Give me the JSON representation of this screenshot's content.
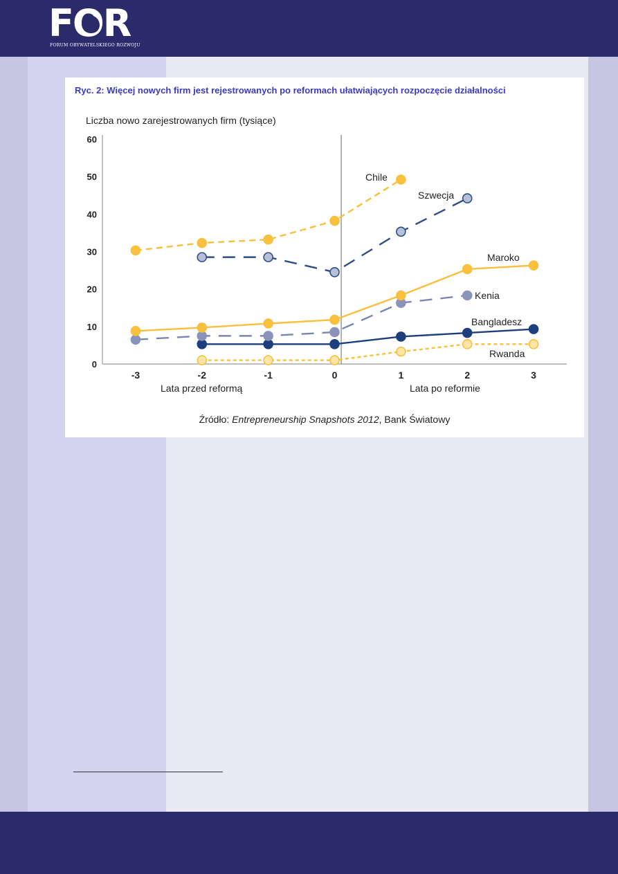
{
  "logo": {
    "text": "FOR",
    "subtitle": "FORUM OBYWATELSKIEGO ROZWOJU"
  },
  "figure": {
    "title": "Ryc. 2: Więcej nowych firm jest rejestrowanych po reformach ułatwiających rozpoczęcie działalności",
    "source_prefix": "Źródło: ",
    "source_title": "Entrepreneurship Snapshots 2012",
    "source_suffix": ", Bank Światowy"
  },
  "chart_data": {
    "type": "line",
    "title": "Ryc. 2: Więcej nowych firm jest rejestrowanych po reformach ułatwiających rozpoczęcie działalności",
    "ylabel": "Liczba nowo zarejestrowanych firm (tysiące)",
    "xlabel_left": "Lata przed reformą",
    "xlabel_right": "Lata po reformie",
    "x_ticks": [
      -3,
      -2,
      -1,
      0,
      1,
      2,
      3
    ],
    "x_tick_labels": [
      "-3",
      "-2",
      "-1",
      "0",
      "1",
      "2",
      "3"
    ],
    "y_ticks": [
      0,
      10,
      20,
      30,
      40,
      50,
      60
    ],
    "y_tick_labels": [
      "0",
      "10",
      "20",
      "30",
      "40",
      "50",
      "60"
    ],
    "ylim": [
      0,
      60
    ],
    "xlim": [
      -3.5,
      3.5
    ],
    "reform_line_x": 0.1,
    "series": [
      {
        "name": "Chile",
        "x": [
          -3,
          -2,
          -1,
          0,
          1
        ],
        "values": [
          30.3,
          32.3,
          33.2,
          38.2,
          49.2
        ],
        "color": "#f8c03d",
        "dash": "medium",
        "marker": "#f8c03d",
        "marker_stroke": "#f8c03d"
      },
      {
        "name": "Szwecja",
        "x": [
          -2,
          -1,
          0,
          1,
          2
        ],
        "values": [
          28.5,
          28.5,
          24.5,
          35.3,
          44.2
        ],
        "color": "#2e4d86",
        "dash": "long",
        "marker": "#b7c0d8",
        "marker_stroke": "#2e4d86"
      },
      {
        "name": "Maroko",
        "x": [
          -3,
          -2,
          -1,
          0,
          1,
          2,
          3
        ],
        "values": [
          8.8,
          9.7,
          10.8,
          11.8,
          18.3,
          25.3,
          26.3
        ],
        "color": "#f8c03d",
        "dash": "solid",
        "marker": "#f8c03d",
        "marker_stroke": "#f8c03d"
      },
      {
        "name": "Kenia",
        "x": [
          -3,
          -2,
          -1,
          0,
          1,
          2
        ],
        "values": [
          6.5,
          7.5,
          7.5,
          8.5,
          16.3,
          18.3
        ],
        "color": "#7b86b0",
        "dash": "long",
        "marker": "#8a94bb",
        "marker_stroke": "#8a94bb"
      },
      {
        "name": "Bangladesz",
        "x": [
          -2,
          -1,
          0,
          1,
          2,
          3
        ],
        "values": [
          5.3,
          5.3,
          5.3,
          7.3,
          8.3,
          9.3
        ],
        "color": "#1e3f7e",
        "dash": "solid",
        "marker": "#1e3f7e",
        "marker_stroke": "#1e3f7e"
      },
      {
        "name": "Rwanda",
        "x": [
          -2,
          -1,
          0,
          1,
          2,
          3
        ],
        "values": [
          1.0,
          1.0,
          1.0,
          3.3,
          5.3,
          5.3
        ],
        "color": "#f8c03d",
        "dash": "short",
        "marker": "#fde5a6",
        "marker_stroke": "#f8c03d"
      }
    ]
  }
}
